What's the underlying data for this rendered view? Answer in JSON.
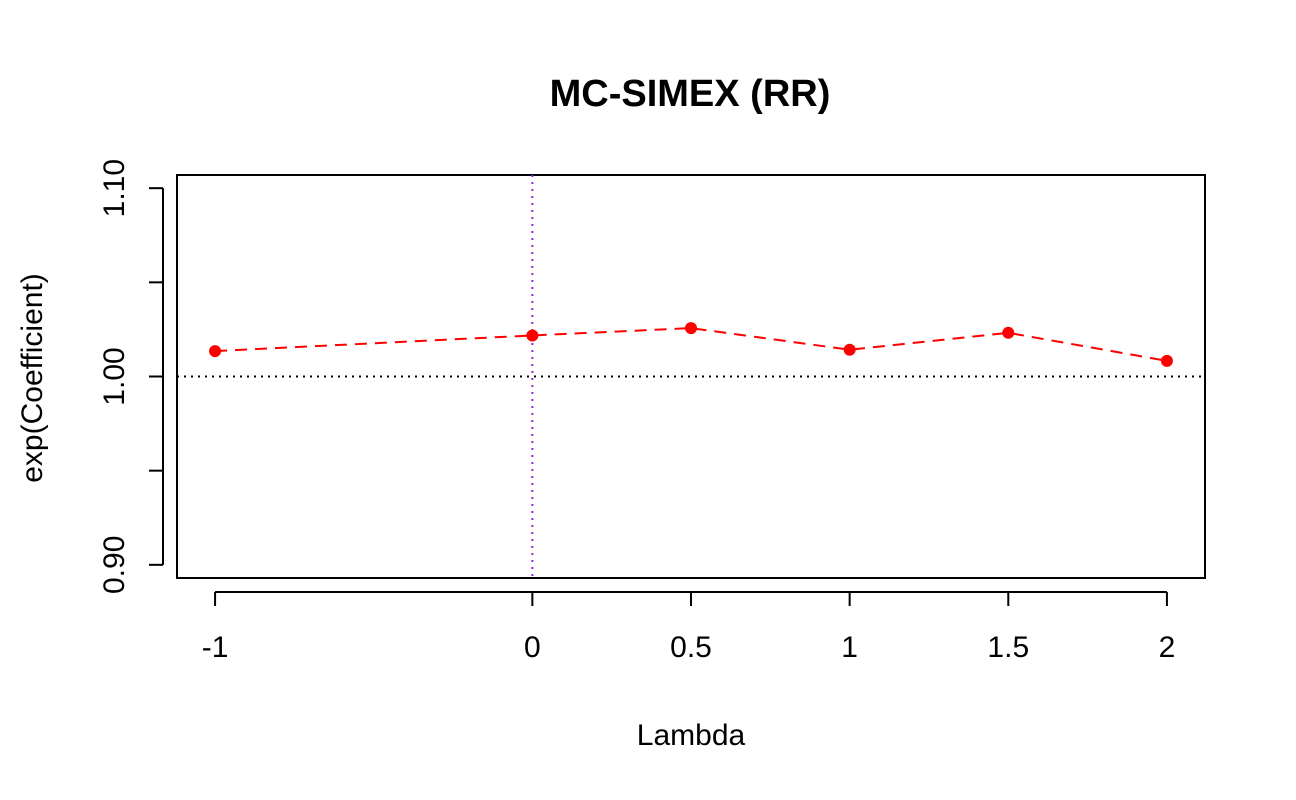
{
  "chart_data": {
    "type": "scatter",
    "title": "MC-SIMEX (RR)",
    "xlabel": "Lambda",
    "ylabel": "exp(Coefficient)",
    "x_ticks": [
      -1,
      0,
      0.5,
      1,
      1.5,
      2
    ],
    "x_tick_labels": [
      "-1",
      "0",
      "0.5",
      "1",
      "1.5",
      "2"
    ],
    "y_ticks": [
      0.9,
      0.95,
      1.0,
      1.05,
      1.1
    ],
    "y_tick_labels": [
      "0.90",
      "",
      "1.00",
      "",
      "1.10"
    ],
    "xlim": [
      -1.12,
      2.12
    ],
    "ylim": [
      0.893,
      1.107
    ],
    "grid": false,
    "reference_lines": [
      {
        "orientation": "horizontal",
        "value": 1.0,
        "style": "dotted",
        "color": "#000000"
      },
      {
        "orientation": "vertical",
        "value": 0,
        "style": "dotted",
        "color": "#8A2BE2"
      }
    ],
    "series": [
      {
        "x": [
          -1,
          0,
          0.5,
          1,
          1.5,
          2
        ],
        "y": [
          1.0135,
          1.0218,
          1.0257,
          1.0142,
          1.0232,
          1.0083
        ],
        "color": "#FF0000",
        "line_style": "dashed",
        "marker": "filled-circle"
      }
    ]
  }
}
